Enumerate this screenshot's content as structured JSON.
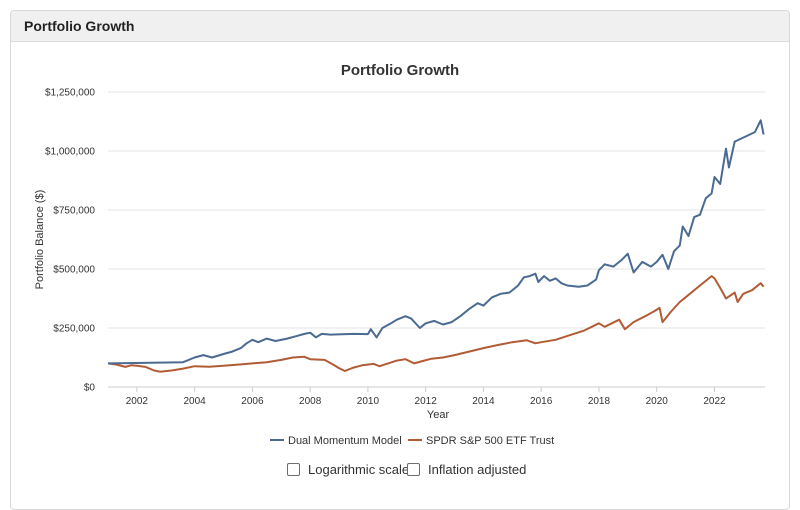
{
  "panel": {
    "title": "Portfolio Growth"
  },
  "options": {
    "log_scale_label": "Logarithmic scale",
    "log_scale_checked": false,
    "inflation_label": "Inflation adjusted",
    "inflation_checked": false
  },
  "chart_data": {
    "type": "line",
    "title": "Portfolio Growth",
    "xlabel": "Year",
    "ylabel": "Portfolio Balance ($)",
    "xlim": [
      2001,
      2023.75
    ],
    "ylim": [
      0,
      1250000
    ],
    "x_ticks": [
      2002,
      2004,
      2006,
      2008,
      2010,
      2012,
      2014,
      2016,
      2018,
      2020,
      2022
    ],
    "y_ticks": [
      0,
      250000,
      500000,
      750000,
      1000000,
      1250000
    ],
    "y_tick_labels": [
      "$0",
      "$250,000",
      "$500,000",
      "$750,000",
      "$1,000,000",
      "$1,250,000"
    ],
    "grid": true,
    "legend_position": "bottom",
    "series": [
      {
        "name": "Dual Momentum Model",
        "color": "#4a6a92",
        "points": [
          [
            2001.0,
            100000
          ],
          [
            2003.6,
            105000
          ],
          [
            2004.0,
            125000
          ],
          [
            2004.3,
            135000
          ],
          [
            2004.6,
            125000
          ],
          [
            2005.0,
            140000
          ],
          [
            2005.3,
            150000
          ],
          [
            2005.6,
            165000
          ],
          [
            2005.8,
            185000
          ],
          [
            2006.0,
            200000
          ],
          [
            2006.2,
            190000
          ],
          [
            2006.5,
            205000
          ],
          [
            2006.8,
            195000
          ],
          [
            2007.2,
            205000
          ],
          [
            2007.5,
            215000
          ],
          [
            2007.8,
            225000
          ],
          [
            2008.0,
            230000
          ],
          [
            2008.2,
            210000
          ],
          [
            2008.4,
            225000
          ],
          [
            2008.7,
            222000
          ],
          [
            2009.5,
            225000
          ],
          [
            2010.0,
            224000
          ],
          [
            2010.1,
            245000
          ],
          [
            2010.3,
            210000
          ],
          [
            2010.5,
            250000
          ],
          [
            2010.8,
            270000
          ],
          [
            2011.0,
            285000
          ],
          [
            2011.3,
            300000
          ],
          [
            2011.5,
            290000
          ],
          [
            2011.8,
            250000
          ],
          [
            2012.0,
            270000
          ],
          [
            2012.3,
            280000
          ],
          [
            2012.6,
            265000
          ],
          [
            2012.9,
            275000
          ],
          [
            2013.2,
            300000
          ],
          [
            2013.5,
            330000
          ],
          [
            2013.8,
            355000
          ],
          [
            2014.0,
            345000
          ],
          [
            2014.3,
            380000
          ],
          [
            2014.6,
            395000
          ],
          [
            2014.9,
            400000
          ],
          [
            2015.2,
            430000
          ],
          [
            2015.4,
            465000
          ],
          [
            2015.6,
            470000
          ],
          [
            2015.8,
            480000
          ],
          [
            2015.9,
            445000
          ],
          [
            2016.1,
            470000
          ],
          [
            2016.3,
            450000
          ],
          [
            2016.5,
            460000
          ],
          [
            2016.7,
            440000
          ],
          [
            2016.9,
            430000
          ],
          [
            2017.3,
            425000
          ],
          [
            2017.6,
            430000
          ],
          [
            2017.9,
            455000
          ],
          [
            2018.0,
            495000
          ],
          [
            2018.2,
            520000
          ],
          [
            2018.5,
            510000
          ],
          [
            2018.8,
            540000
          ],
          [
            2019.0,
            565000
          ],
          [
            2019.2,
            485000
          ],
          [
            2019.5,
            530000
          ],
          [
            2019.8,
            510000
          ],
          [
            2020.0,
            530000
          ],
          [
            2020.2,
            560000
          ],
          [
            2020.4,
            500000
          ],
          [
            2020.6,
            575000
          ],
          [
            2020.8,
            600000
          ],
          [
            2020.9,
            680000
          ],
          [
            2021.1,
            640000
          ],
          [
            2021.3,
            720000
          ],
          [
            2021.5,
            730000
          ],
          [
            2021.7,
            800000
          ],
          [
            2021.9,
            820000
          ],
          [
            2022.0,
            890000
          ],
          [
            2022.2,
            860000
          ],
          [
            2022.4,
            1010000
          ],
          [
            2022.5,
            930000
          ],
          [
            2022.7,
            1040000
          ],
          [
            2023.4,
            1080000
          ],
          [
            2023.6,
            1130000
          ],
          [
            2023.7,
            1070000
          ]
        ]
      },
      {
        "name": "SPDR S&P 500 ETF Trust",
        "color": "#b15c35",
        "points": [
          [
            2001.0,
            100000
          ],
          [
            2001.3,
            95000
          ],
          [
            2001.6,
            85000
          ],
          [
            2001.8,
            92000
          ],
          [
            2002.0,
            90000
          ],
          [
            2002.3,
            85000
          ],
          [
            2002.6,
            70000
          ],
          [
            2002.8,
            65000
          ],
          [
            2003.2,
            70000
          ],
          [
            2003.6,
            78000
          ],
          [
            2004.0,
            88000
          ],
          [
            2004.5,
            86000
          ],
          [
            2005.0,
            90000
          ],
          [
            2005.5,
            95000
          ],
          [
            2006.0,
            100000
          ],
          [
            2006.5,
            105000
          ],
          [
            2007.0,
            115000
          ],
          [
            2007.4,
            125000
          ],
          [
            2007.8,
            128000
          ],
          [
            2008.0,
            118000
          ],
          [
            2008.5,
            115000
          ],
          [
            2008.8,
            95000
          ],
          [
            2009.0,
            80000
          ],
          [
            2009.2,
            68000
          ],
          [
            2009.5,
            82000
          ],
          [
            2009.8,
            92000
          ],
          [
            2010.2,
            98000
          ],
          [
            2010.4,
            88000
          ],
          [
            2010.7,
            100000
          ],
          [
            2011.0,
            112000
          ],
          [
            2011.3,
            118000
          ],
          [
            2011.6,
            100000
          ],
          [
            2011.9,
            110000
          ],
          [
            2012.2,
            120000
          ],
          [
            2012.6,
            125000
          ],
          [
            2013.0,
            135000
          ],
          [
            2013.5,
            150000
          ],
          [
            2014.0,
            165000
          ],
          [
            2014.5,
            178000
          ],
          [
            2015.0,
            190000
          ],
          [
            2015.5,
            198000
          ],
          [
            2015.8,
            185000
          ],
          [
            2016.0,
            190000
          ],
          [
            2016.5,
            200000
          ],
          [
            2017.0,
            220000
          ],
          [
            2017.5,
            240000
          ],
          [
            2018.0,
            270000
          ],
          [
            2018.2,
            255000
          ],
          [
            2018.7,
            285000
          ],
          [
            2018.9,
            245000
          ],
          [
            2019.2,
            275000
          ],
          [
            2019.6,
            300000
          ],
          [
            2019.9,
            320000
          ],
          [
            2020.1,
            335000
          ],
          [
            2020.2,
            275000
          ],
          [
            2020.5,
            320000
          ],
          [
            2020.8,
            360000
          ],
          [
            2021.0,
            380000
          ],
          [
            2021.5,
            430000
          ],
          [
            2021.9,
            470000
          ],
          [
            2022.0,
            460000
          ],
          [
            2022.2,
            420000
          ],
          [
            2022.4,
            375000
          ],
          [
            2022.7,
            400000
          ],
          [
            2022.8,
            360000
          ],
          [
            2023.0,
            395000
          ],
          [
            2023.3,
            410000
          ],
          [
            2023.6,
            440000
          ],
          [
            2023.7,
            425000
          ]
        ]
      }
    ]
  }
}
